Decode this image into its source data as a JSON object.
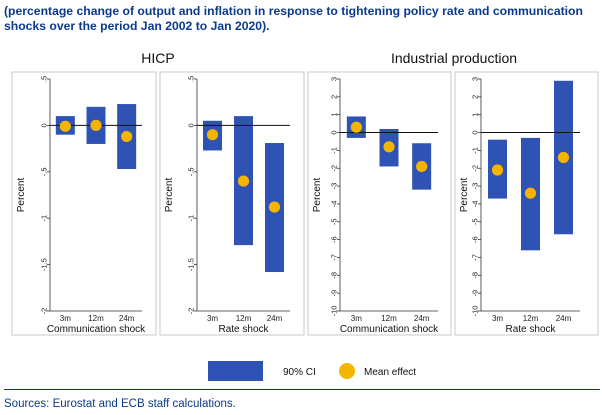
{
  "subtitle": "(percentage change of output and inflation in response to tightening policy rate and communication shocks over the period Jan 2002 to Jan 2020).",
  "source": "Sources: Eurostat and ECB staff calculations.",
  "colors": {
    "ci": "#2f53b4",
    "mean": "#f5b400",
    "text": "#0b3a8c",
    "frame": "#c8c8c8"
  },
  "legend": {
    "ci_label": "90% CI",
    "mean_label": "Mean effect"
  },
  "chart_data": [
    {
      "type": "bar",
      "group_title": "HICP",
      "xlabel": "Communication shock",
      "ylabel": "Percent",
      "categories": [
        "3m",
        "12m",
        "24m"
      ],
      "ylim": [
        -2,
        0.5
      ],
      "yticks": [
        0.5,
        0,
        -0.5,
        -1,
        -1.5,
        -2
      ],
      "ytick_labels": [
        ".5",
        "0",
        "-.5",
        "-1",
        "-1.5",
        "-2"
      ],
      "ci_low": [
        -0.1,
        -0.2,
        -0.47
      ],
      "ci_high": [
        0.1,
        0.2,
        0.23
      ],
      "mean": [
        -0.01,
        0.0,
        -0.12
      ]
    },
    {
      "type": "bar",
      "group_title": "HICP",
      "xlabel": "Rate shock",
      "ylabel": "Percent",
      "categories": [
        "3m",
        "12m",
        "24m"
      ],
      "ylim": [
        -2,
        0.5
      ],
      "yticks": [
        0.5,
        0,
        -0.5,
        -1,
        -1.5,
        -2
      ],
      "ytick_labels": [
        ".5",
        "0",
        "-.5",
        "-1",
        "-1.5",
        "-2"
      ],
      "ci_low": [
        -0.27,
        -1.29,
        -1.58
      ],
      "ci_high": [
        0.05,
        0.1,
        -0.19
      ],
      "mean": [
        -0.1,
        -0.6,
        -0.88
      ]
    },
    {
      "type": "bar",
      "group_title": "Industrial production",
      "xlabel": "Communication shock",
      "ylabel": "Percent",
      "categories": [
        "3m",
        "12m",
        "24m"
      ],
      "ylim": [
        -10,
        3
      ],
      "yticks": [
        3,
        2,
        1,
        0,
        -1,
        -2,
        -3,
        -4,
        -5,
        -6,
        -7,
        -8,
        -9,
        -10
      ],
      "ytick_labels": [
        "3",
        "2",
        "1",
        "0",
        "-1",
        "-2",
        "-3",
        "-4",
        "-5",
        "-6",
        "-7",
        "-8",
        "-9",
        "-10"
      ],
      "ci_low": [
        -0.3,
        -1.9,
        -3.2
      ],
      "ci_high": [
        0.9,
        0.2,
        -0.6
      ],
      "mean": [
        0.3,
        -0.8,
        -1.9
      ]
    },
    {
      "type": "bar",
      "group_title": "Industrial production",
      "xlabel": "Rate shock",
      "ylabel": "Percent",
      "categories": [
        "3m",
        "12m",
        "24m"
      ],
      "ylim": [
        -10,
        3
      ],
      "yticks": [
        3,
        2,
        1,
        0,
        -1,
        -2,
        -3,
        -4,
        -5,
        -6,
        -7,
        -8,
        -9,
        -10
      ],
      "ytick_labels": [
        "3",
        "2",
        "1",
        "0",
        "-1",
        "-2",
        "-3",
        "-4",
        "-5",
        "-6",
        "-7",
        "-8",
        "-9",
        "-10"
      ],
      "ci_low": [
        -3.7,
        -6.6,
        -5.7
      ],
      "ci_high": [
        -0.4,
        -0.3,
        2.9
      ],
      "mean": [
        -2.1,
        -3.4,
        -1.4
      ]
    }
  ]
}
